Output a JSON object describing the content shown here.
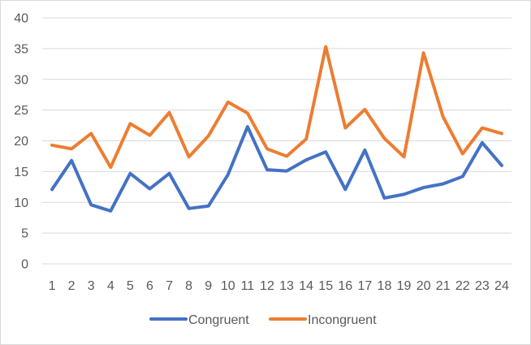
{
  "chart_data": {
    "type": "line",
    "title": "",
    "xlabel": "",
    "ylabel": "",
    "x": [
      1,
      2,
      3,
      4,
      5,
      6,
      7,
      8,
      9,
      10,
      11,
      12,
      13,
      14,
      15,
      16,
      17,
      18,
      19,
      20,
      21,
      22,
      23,
      24
    ],
    "xtick_labels": [
      "1",
      "2",
      "3",
      "4",
      "5",
      "6",
      "7",
      "8",
      "9",
      "10",
      "11",
      "12",
      "13",
      "14",
      "15",
      "16",
      "17",
      "18",
      "19",
      "20",
      "21",
      "22",
      "23",
      "24"
    ],
    "ylim": [
      0,
      40
    ],
    "yticks": [
      0,
      5,
      10,
      15,
      20,
      25,
      30,
      35,
      40
    ],
    "ytick_labels": [
      "0",
      "5",
      "10",
      "15",
      "20",
      "25",
      "30",
      "35",
      "40"
    ],
    "grid": true,
    "legend_position": "bottom",
    "series": [
      {
        "name": "Congruent",
        "color": "#4472c4",
        "values": [
          12.1,
          16.8,
          9.6,
          8.6,
          14.7,
          12.2,
          14.7,
          9.0,
          9.4,
          14.5,
          22.3,
          15.3,
          15.1,
          16.9,
          18.2,
          12.1,
          18.5,
          10.7,
          11.3,
          12.4,
          13.0,
          14.2,
          19.7,
          16.0
        ]
      },
      {
        "name": "Incongruent",
        "color": "#ed7d31",
        "values": [
          19.3,
          18.7,
          21.2,
          15.7,
          22.8,
          20.9,
          24.6,
          17.4,
          20.8,
          26.3,
          24.5,
          18.7,
          17.5,
          20.3,
          35.3,
          22.1,
          25.1,
          20.4,
          17.4,
          34.3,
          23.9,
          17.9,
          22.1,
          21.2
        ]
      }
    ]
  }
}
